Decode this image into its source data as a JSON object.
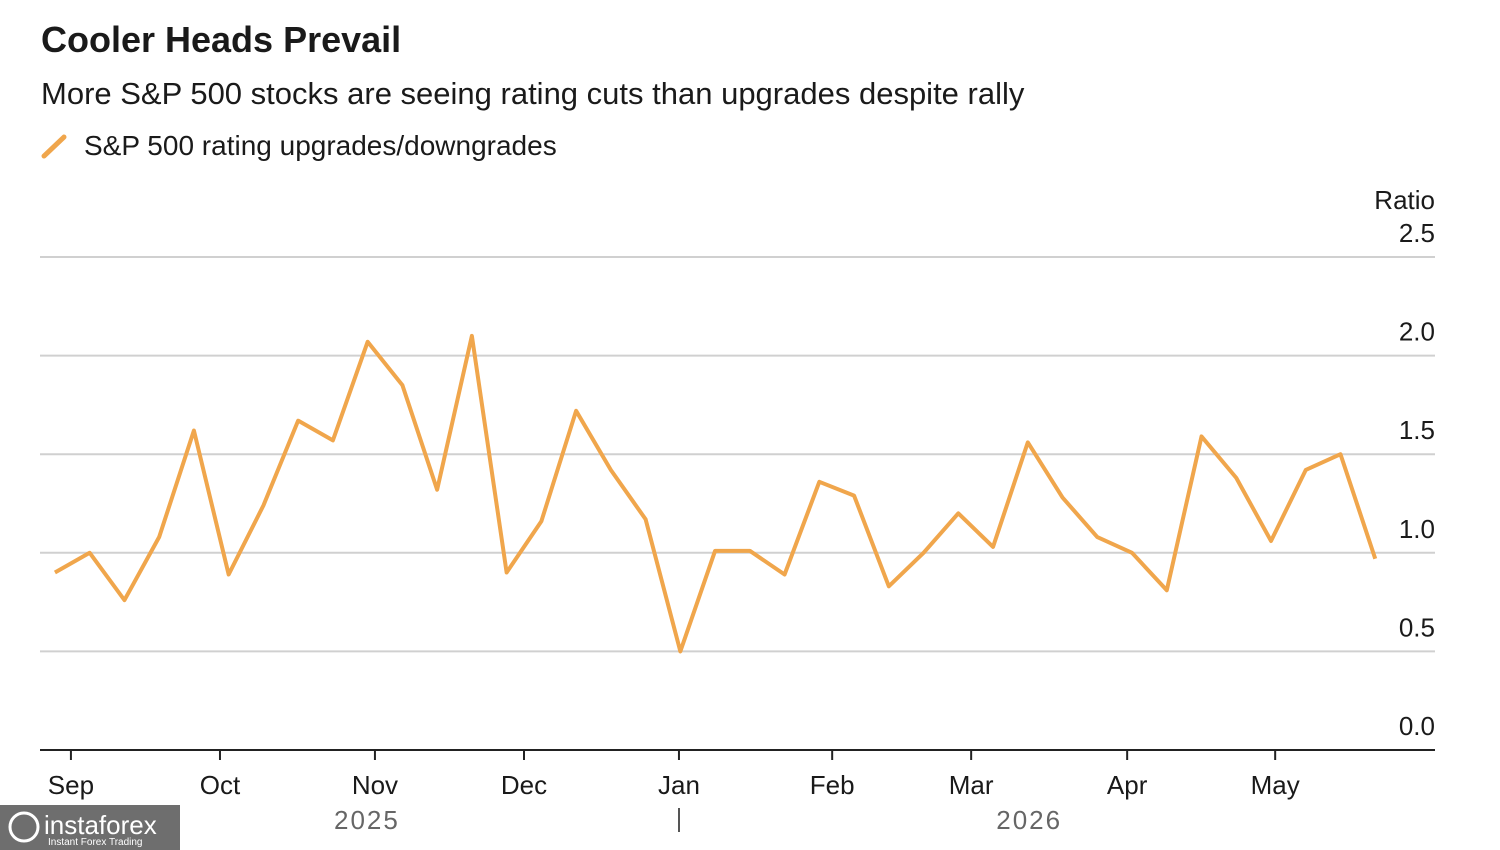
{
  "chart_data": {
    "type": "line",
    "title": "Cooler Heads Prevail",
    "subtitle": "More S&P 500 stocks are seeing rating cuts than upgrades despite rally",
    "y_axis_label": "Ratio",
    "series": [
      {
        "name": "S&P 500 rating upgrades/downgrades",
        "color": "#f0a64c",
        "values": [
          0.9,
          1.0,
          0.76,
          1.08,
          1.62,
          0.89,
          1.24,
          1.67,
          1.57,
          2.07,
          1.85,
          1.32,
          2.1,
          0.9,
          1.16,
          1.72,
          1.42,
          1.17,
          0.5,
          1.01,
          1.01,
          0.89,
          1.36,
          1.29,
          0.83,
          1.0,
          1.2,
          1.03,
          1.56,
          1.28,
          1.08,
          1.0,
          0.81,
          1.59,
          1.38,
          1.06,
          1.42,
          1.5,
          0.97
        ]
      }
    ],
    "ylim": [
      0,
      2.5
    ],
    "yticks": [
      {
        "value": 0,
        "label": "0.0"
      },
      {
        "value": 0.5,
        "label": "0.5"
      },
      {
        "value": 1,
        "label": "1.0"
      },
      {
        "value": 1.5,
        "label": "1.5"
      },
      {
        "value": 2,
        "label": "2.0"
      },
      {
        "value": 2.5,
        "label": "2.5"
      }
    ],
    "xlim": [
      -0.43,
      39.72
    ],
    "xticks": [
      {
        "value": 0.46,
        "label": "Sep"
      },
      {
        "value": 4.75,
        "label": "Oct"
      },
      {
        "value": 9.21,
        "label": "Nov"
      },
      {
        "value": 13.5,
        "label": "Dec"
      },
      {
        "value": 17.96,
        "label": "Jan"
      },
      {
        "value": 22.37,
        "label": "Feb"
      },
      {
        "value": 26.37,
        "label": "Mar"
      },
      {
        "value": 30.86,
        "label": "Apr"
      },
      {
        "value": 35.12,
        "label": "May"
      }
    ],
    "x_year_labels": [
      {
        "value": 8.98,
        "label": "2025"
      },
      {
        "value": 28.04,
        "label": "2026"
      }
    ],
    "grid": true
  },
  "watermark": {
    "brand": "instaforex",
    "tagline": "Instant Forex Trading"
  }
}
